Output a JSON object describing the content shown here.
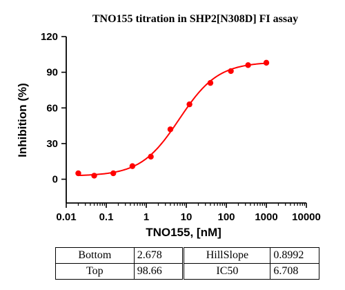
{
  "chart_data": {
    "type": "scatter",
    "title": "TNO155 titration in SHP2[N308D] FI assay",
    "xlabel": "TNO155, [nM]",
    "ylabel": "Inhibition (%)",
    "x_scale": "log",
    "xlim": [
      0.01,
      10000
    ],
    "ylim": [
      -20,
      120
    ],
    "x_ticks": [
      0.01,
      0.1,
      1,
      10,
      100,
      1000,
      10000
    ],
    "x_tick_labels": [
      "0.01",
      "0.1",
      "1",
      "10",
      "100",
      "1000",
      "10000"
    ],
    "y_ticks": [
      0,
      30,
      60,
      90,
      120
    ],
    "y_tick_labels": [
      "0",
      "30",
      "60",
      "90",
      "120"
    ],
    "grid": false,
    "series": [
      {
        "kind": "points",
        "color": "#ff0000",
        "x": [
          0.02,
          0.05,
          0.15,
          0.45,
          1.3,
          4,
          12,
          40,
          130,
          350,
          1000
        ],
        "y": [
          5,
          3,
          5,
          11,
          19,
          42,
          63,
          81,
          91,
          96,
          98
        ]
      },
      {
        "kind": "fit",
        "model": "four-parameter logistic",
        "color": "#ff0000",
        "bottom": 2.678,
        "top": 98.66,
        "hill_slope": 0.8992,
        "ic50": 6.708
      }
    ]
  },
  "params_table": {
    "rows": [
      [
        "Bottom",
        "2.678",
        "HillSlope",
        "0.8992"
      ],
      [
        "Top",
        "98.66",
        "IC50",
        "6.708"
      ]
    ]
  }
}
